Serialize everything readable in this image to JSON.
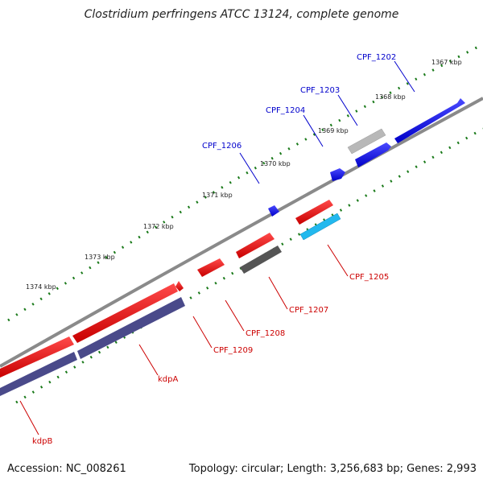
{
  "title": "Clostridium perfringens ATCC 13124, complete genome",
  "footer": {
    "accession": "Accession: NC_008261",
    "summary": "Topology: circular; Length: 3,256,683 bp; Genes: 2,993"
  },
  "ruler": [
    "1367 kbp",
    "1368 kbp",
    "1369 kbp",
    "1370 kbp",
    "1371 kbp",
    "1372 kbp",
    "1373 kbp",
    "1374 kbp"
  ],
  "genes": {
    "cpf_1202": "CPF_1202",
    "cpf_1203": "CPF_1203",
    "cpf_1204": "CPF_1204",
    "cpf_1206": "CPF_1206",
    "cpf_1205": "CPF_1205",
    "cpf_1207": "CPF_1207",
    "cpf_1208": "CPF_1208",
    "cpf_1209": "CPF_1209",
    "kdpa": "kdpA",
    "kdpb": "kdpB"
  },
  "colors": {
    "forward_gene": "#1111ee",
    "forward_pseudo": "#aaaaaa",
    "reverse_gene": "#ee1111",
    "reverse_cds": "#4a4a8a",
    "reverse_gray": "#555555",
    "reverse_cyan": "#22b8ee",
    "backbone": "#888888",
    "ticks": "#1a7a1a"
  }
}
